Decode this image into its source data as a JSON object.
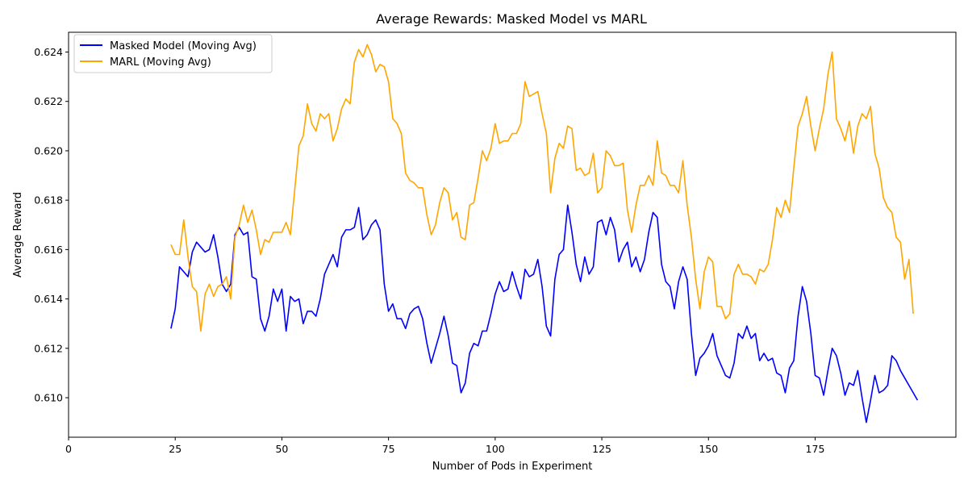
{
  "chart_data": {
    "type": "line",
    "title": "Average Rewards: Masked Model vs MARL",
    "xlabel": "Number of Pods in Experiment",
    "ylabel": "Average Reward",
    "xlim": [
      0,
      208
    ],
    "ylim": [
      0.6084,
      0.6248
    ],
    "xticks": [
      0,
      25,
      50,
      75,
      100,
      125,
      150,
      175
    ],
    "yticks": [
      0.61,
      0.612,
      0.614,
      0.616,
      0.618,
      0.62,
      0.622,
      0.624
    ],
    "ytick_labels": [
      "0.610",
      "0.612",
      "0.614",
      "0.616",
      "0.618",
      "0.620",
      "0.622",
      "0.624"
    ],
    "grid": false,
    "legend_position": "upper-left",
    "x_start": 24,
    "series": [
      {
        "name": "Masked Model (Moving Avg)",
        "color": "#0000ff",
        "values": [
          0.6128,
          0.6136,
          0.6153,
          0.6151,
          0.6149,
          0.6159,
          0.6163,
          0.6161,
          0.6159,
          0.616,
          0.6166,
          0.6157,
          0.6146,
          0.6143,
          0.6146,
          0.6166,
          0.6169,
          0.6166,
          0.6167,
          0.6149,
          0.6148,
          0.6132,
          0.6127,
          0.6133,
          0.6144,
          0.6139,
          0.6144,
          0.6127,
          0.6141,
          0.6139,
          0.614,
          0.613,
          0.6135,
          0.6135,
          0.6133,
          0.614,
          0.615,
          0.6154,
          0.6158,
          0.6153,
          0.6165,
          0.6168,
          0.6168,
          0.6169,
          0.6177,
          0.6164,
          0.6166,
          0.617,
          0.6172,
          0.6168,
          0.6146,
          0.6135,
          0.6138,
          0.6132,
          0.6132,
          0.6128,
          0.6134,
          0.6136,
          0.6137,
          0.6132,
          0.6122,
          0.6114,
          0.612,
          0.6126,
          0.6133,
          0.6125,
          0.6114,
          0.6113,
          0.6102,
          0.6106,
          0.6118,
          0.6122,
          0.6121,
          0.6127,
          0.6127,
          0.6134,
          0.6142,
          0.6147,
          0.6143,
          0.6144,
          0.6151,
          0.6145,
          0.614,
          0.6152,
          0.6149,
          0.615,
          0.6156,
          0.6145,
          0.6129,
          0.6125,
          0.6148,
          0.6158,
          0.616,
          0.6178,
          0.6167,
          0.6154,
          0.6147,
          0.6157,
          0.615,
          0.6153,
          0.6171,
          0.6172,
          0.6166,
          0.6173,
          0.6168,
          0.6155,
          0.616,
          0.6163,
          0.6153,
          0.6157,
          0.6151,
          0.6156,
          0.6167,
          0.6175,
          0.6173,
          0.6154,
          0.6147,
          0.6145,
          0.6136,
          0.6147,
          0.6153,
          0.6148,
          0.6126,
          0.6109,
          0.6116,
          0.6118,
          0.6121,
          0.6126,
          0.6117,
          0.6113,
          0.6109,
          0.6108,
          0.6114,
          0.6126,
          0.6124,
          0.6129,
          0.6124,
          0.6126,
          0.6115,
          0.6118,
          0.6115,
          0.6116,
          0.611,
          0.6109,
          0.6102,
          0.6112,
          0.6115,
          0.6133,
          0.6145,
          0.6139,
          0.6126,
          0.6109,
          0.6108,
          0.6101,
          0.6111,
          0.612,
          0.6117,
          0.611,
          0.6101,
          0.6106,
          0.6105,
          0.6111,
          0.61,
          0.609,
          0.6099,
          0.6109,
          0.6102,
          0.6103,
          0.6105,
          0.6117,
          0.6115,
          0.6111,
          0.6108,
          0.6105,
          0.6102,
          0.6099
        ]
      },
      {
        "name": "MARL (Moving Avg)",
        "color": "#ffa500",
        "values": [
          0.6162,
          0.6158,
          0.6158,
          0.6172,
          0.6157,
          0.6145,
          0.6143,
          0.6127,
          0.6142,
          0.6146,
          0.6141,
          0.6145,
          0.6146,
          0.6149,
          0.614,
          0.6165,
          0.617,
          0.6178,
          0.6171,
          0.6176,
          0.6168,
          0.6158,
          0.6164,
          0.6163,
          0.6167,
          0.6167,
          0.6167,
          0.6171,
          0.6166,
          0.6184,
          0.6202,
          0.6206,
          0.6219,
          0.6211,
          0.6208,
          0.6215,
          0.6213,
          0.6215,
          0.6204,
          0.6209,
          0.6217,
          0.6221,
          0.6219,
          0.6236,
          0.6241,
          0.6238,
          0.6243,
          0.6239,
          0.6232,
          0.6235,
          0.6234,
          0.6228,
          0.6213,
          0.6211,
          0.6207,
          0.6191,
          0.6188,
          0.6187,
          0.6185,
          0.6185,
          0.6174,
          0.6166,
          0.617,
          0.6179,
          0.6185,
          0.6183,
          0.6172,
          0.6175,
          0.6165,
          0.6164,
          0.6178,
          0.6179,
          0.6189,
          0.62,
          0.6196,
          0.6201,
          0.6211,
          0.6203,
          0.6204,
          0.6204,
          0.6207,
          0.6207,
          0.6211,
          0.6228,
          0.6222,
          0.6223,
          0.6224,
          0.6215,
          0.6207,
          0.6183,
          0.6197,
          0.6203,
          0.6201,
          0.621,
          0.6209,
          0.6192,
          0.6193,
          0.619,
          0.6191,
          0.6199,
          0.6183,
          0.6185,
          0.62,
          0.6198,
          0.6194,
          0.6194,
          0.6195,
          0.6176,
          0.6167,
          0.6178,
          0.6186,
          0.6186,
          0.619,
          0.6186,
          0.6204,
          0.6191,
          0.619,
          0.6186,
          0.6186,
          0.6183,
          0.6196,
          0.6178,
          0.6165,
          0.6148,
          0.6136,
          0.6151,
          0.6157,
          0.6155,
          0.6137,
          0.6137,
          0.6132,
          0.6134,
          0.615,
          0.6154,
          0.615,
          0.615,
          0.6149,
          0.6146,
          0.6152,
          0.6151,
          0.6154,
          0.6164,
          0.6177,
          0.6173,
          0.618,
          0.6175,
          0.6193,
          0.621,
          0.6215,
          0.6222,
          0.621,
          0.62,
          0.6209,
          0.6217,
          0.6231,
          0.624,
          0.6213,
          0.6209,
          0.6204,
          0.6212,
          0.6199,
          0.621,
          0.6215,
          0.6213,
          0.6218,
          0.6199,
          0.6193,
          0.6181,
          0.6177,
          0.6175,
          0.6165,
          0.6163,
          0.6148,
          0.6156,
          0.6134
        ]
      }
    ]
  }
}
